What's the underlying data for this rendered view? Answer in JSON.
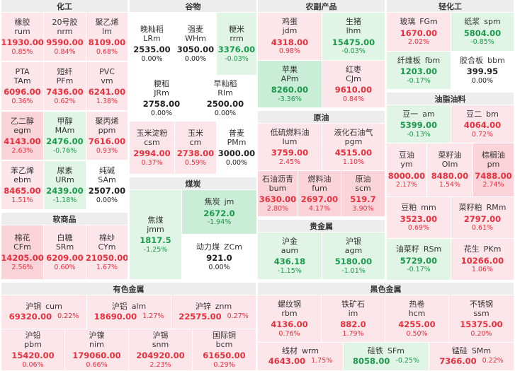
{
  "sections": {
    "chem": "化工",
    "grain": "谷物",
    "agri": "农副产品",
    "light": "轻化工",
    "oils": "油脂油料",
    "crude": "原油",
    "coal": "煤炭",
    "soft": "软商品",
    "precious": "贵金属",
    "nonferrous": "有色金属",
    "ferrous": "黑色金属"
  },
  "chem": [
    {
      "name": "橡胶",
      "code": "rum",
      "price": "11930.00",
      "pct": "0.85%"
    },
    {
      "name": "20号胶",
      "code": "nrm",
      "price": "9590.00",
      "pct": "0.84%"
    },
    {
      "name": "聚乙烯",
      "code": "lm",
      "price": "8109.00",
      "pct": "0.68%"
    },
    {
      "name": "PTA",
      "code": "TAm",
      "price": "6096.00",
      "pct": "0.36%"
    },
    {
      "name": "短纤",
      "code": "PFm",
      "price": "7436.00",
      "pct": "0.62%"
    },
    {
      "name": "PVC",
      "code": "vm",
      "price": "6241.00",
      "pct": "1.38%"
    },
    {
      "name": "乙二醇",
      "code": "egm",
      "price": "4143.00",
      "pct": "2.63%"
    },
    {
      "name": "甲醇",
      "code": "MAm",
      "price": "2476.00",
      "pct": "-0.76%"
    },
    {
      "name": "聚丙烯",
      "code": "ppm",
      "price": "7616.00",
      "pct": "0.93%"
    },
    {
      "name": "苯乙烯",
      "code": "ebm",
      "price": "8465.00",
      "pct": "1.51%"
    },
    {
      "name": "尿素",
      "code": "URm",
      "price": "2439.00",
      "pct": "-1.18%"
    },
    {
      "name": "纯碱",
      "code": "SAm",
      "price": "2507.00",
      "pct": "0.00%"
    }
  ],
  "grain": [
    {
      "name": "晚籼稻",
      "code": "LRm",
      "price": "2535.00",
      "pct": "0.00%"
    },
    {
      "name": "强麦",
      "code": "WHm",
      "price": "3050.00",
      "pct": "0.00%"
    },
    {
      "name": "粳米",
      "code": "rrm",
      "price": "3376.00",
      "pct": "-0.03%"
    },
    {
      "name": "粳稻",
      "code": "JRm",
      "price": "2758.00",
      "pct": "0.00%"
    },
    {
      "name": "早籼稻",
      "code": "RIm",
      "price": "2500.00",
      "pct": "0.00%"
    },
    {
      "name": "玉米淀粉",
      "code": "csm",
      "price": "2994.00",
      "pct": "0.37%"
    },
    {
      "name": "玉米",
      "code": "cm",
      "price": "2738.00",
      "pct": "0.59%"
    },
    {
      "name": "普麦",
      "code": "PMm",
      "price": "3000.00",
      "pct": "0.00%"
    }
  ],
  "agri": [
    {
      "name": "鸡蛋",
      "code": "jdm",
      "price": "4318.00",
      "pct": "0.98%"
    },
    {
      "name": "生猪",
      "code": "lhm",
      "price": "15475.00",
      "pct": "-0.03%"
    },
    {
      "name": "苹果",
      "code": "APm",
      "price": "8260.00",
      "pct": "-3.36%"
    },
    {
      "name": "红枣",
      "code": "CJm",
      "price": "9610.00",
      "pct": "0.84%"
    }
  ],
  "light": [
    {
      "name": "玻璃",
      "code": "FGm",
      "price": "1670.00",
      "pct": "2.02%"
    },
    {
      "name": "纸浆",
      "code": "spm",
      "price": "5804.00",
      "pct": "-0.85%"
    },
    {
      "name": "纤维板",
      "code": "fbm",
      "price": "1203.00",
      "pct": "-0.17%"
    },
    {
      "name": "胶合板",
      "code": "bbm",
      "price": "399.95",
      "pct": "0.00%"
    }
  ],
  "oils": [
    {
      "name": "豆一",
      "code": "am",
      "price": "5399.00",
      "pct": "-0.13%"
    },
    {
      "name": "豆二",
      "code": "bm",
      "price": "4064.00",
      "pct": "0.72%"
    },
    {
      "name": "豆油",
      "code": "ym",
      "price": "8000.00",
      "pct": "2.17%"
    },
    {
      "name": "菜籽油",
      "code": "OIm",
      "price": "8480.00",
      "pct": "1.54%"
    },
    {
      "name": "棕榈油",
      "code": "pm",
      "price": "7488.00",
      "pct": "2.74%"
    },
    {
      "name": "豆粕",
      "code": "mm",
      "price": "3523.00",
      "pct": "0.69%"
    },
    {
      "name": "菜籽粕",
      "code": "RMm",
      "price": "2797.00",
      "pct": "0.61%"
    },
    {
      "name": "油菜籽",
      "code": "RSm",
      "price": "5729.00",
      "pct": "-0.17%"
    },
    {
      "name": "花生",
      "code": "PKm",
      "price": "10266.00",
      "pct": "1.06%"
    }
  ],
  "crude": [
    {
      "name": "低硫燃料油",
      "code": "lum",
      "price": "3759.00",
      "pct": "2.45%"
    },
    {
      "name": "液化石油气",
      "code": "pgm",
      "price": "4515.00",
      "pct": "1.10%"
    },
    {
      "name": "石油沥青",
      "code": "bum",
      "price": "3630.00",
      "pct": "2.80%"
    },
    {
      "name": "燃料油",
      "code": "fum",
      "price": "2697.00",
      "pct": "4.17%"
    },
    {
      "name": "原油",
      "code": "scm",
      "price": "519.7",
      "pct": "3.90%"
    }
  ],
  "coal": [
    {
      "name": "焦煤",
      "code": "jmm",
      "price": "1817.5",
      "pct": "-1.25%"
    },
    {
      "name": "焦炭",
      "code": "jm",
      "price": "2672.0",
      "pct": "-1.94%"
    },
    {
      "name": "动力煤",
      "code": "ZCm",
      "price": "921.0",
      "pct": "0.00%"
    }
  ],
  "soft": [
    {
      "name": "棉花",
      "code": "CFm",
      "price": "14205.00",
      "pct": "2.56%"
    },
    {
      "name": "白糖",
      "code": "SRm",
      "price": "6209.00",
      "pct": "0.60%"
    },
    {
      "name": "棉纱",
      "code": "CYm",
      "price": "21050.00",
      "pct": "1.67%"
    }
  ],
  "precious": [
    {
      "name": "沪金",
      "code": "aum",
      "price": "436.18",
      "pct": "-1.15%"
    },
    {
      "name": "沪银",
      "code": "agm",
      "price": "5180.00",
      "pct": "-1.01%"
    }
  ],
  "nonferrous": [
    {
      "name": "沪铜",
      "code": "cum",
      "price": "69320.00",
      "pct": "0.22%"
    },
    {
      "name": "沪铝",
      "code": "alm",
      "price": "18690.00",
      "pct": "1.27%"
    },
    {
      "name": "沪锌",
      "code": "znm",
      "price": "22575.00",
      "pct": "0.27%"
    },
    {
      "name": "沪铅",
      "code": "pbm",
      "price": "15420.00",
      "pct": "0.06%"
    },
    {
      "name": "沪镍",
      "code": "nim",
      "price": "179060.00",
      "pct": "0.66%"
    },
    {
      "name": "沪锡",
      "code": "snm",
      "price": "204920.00",
      "pct": "2.23%"
    },
    {
      "name": "国际铜",
      "code": "bcm",
      "price": "61650.00",
      "pct": "0.29%"
    }
  ],
  "ferrous": [
    {
      "name": "螺纹钢",
      "code": "rbm",
      "price": "4136.00",
      "pct": "0.76%"
    },
    {
      "name": "铁矿石",
      "code": "im",
      "price": "882.0",
      "pct": "1.79%"
    },
    {
      "name": "热卷",
      "code": "hcm",
      "price": "4255.00",
      "pct": "0.50%"
    },
    {
      "name": "不锈钢",
      "code": "ssm",
      "price": "15375.00",
      "pct": "0.20%"
    },
    {
      "name": "线材",
      "code": "wrm",
      "price": "4643.00",
      "pct": "1.75%"
    },
    {
      "name": "硅铁",
      "code": "SFm",
      "price": "8058.00",
      "pct": "-0.25%"
    },
    {
      "name": "锰硅",
      "code": "SMm",
      "price": "7366.00",
      "pct": "0.22%"
    }
  ],
  "colors": {
    "up_bg": "#fde6ea",
    "up_strong_bg": "#fbd4da",
    "down_bg": "#e0f5e6",
    "down_strong_bg": "#c9edd6",
    "up_text": "#e8303c",
    "down_text": "#1a9a4a"
  }
}
